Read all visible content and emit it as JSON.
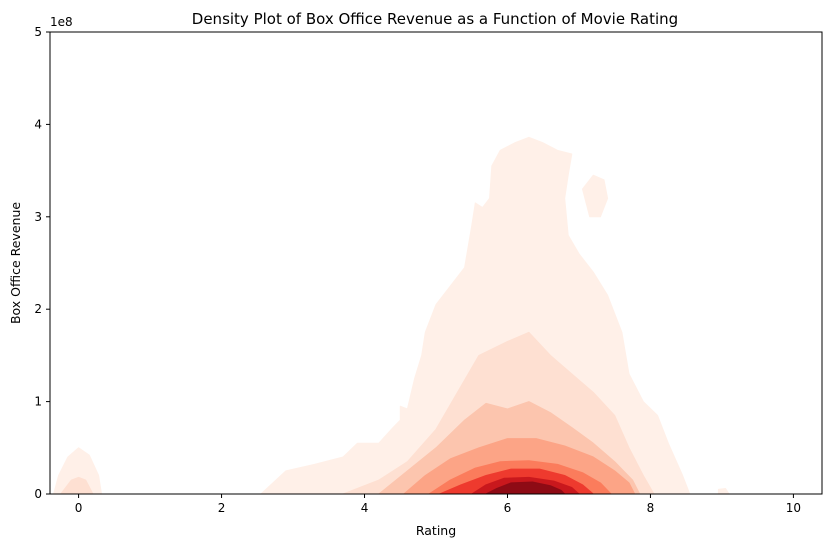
{
  "chart_data": {
    "type": "kde_contour",
    "title": "Density Plot of Box Office Revenue as a Function of Movie Rating",
    "xlabel": "Rating",
    "ylabel": "Box Office Revenue",
    "y_offset_label": "1e8",
    "xlim": [
      -0.4,
      10.4
    ],
    "ylim": [
      0,
      5
    ],
    "x_ticks": [
      0,
      2,
      4,
      6,
      8,
      10
    ],
    "x_tick_labels": [
      "0",
      "2",
      "4",
      "6",
      "8",
      "10"
    ],
    "y_ticks": [
      0,
      1,
      2,
      3,
      4,
      5
    ],
    "y_tick_labels": [
      "0",
      "1",
      "2",
      "3",
      "4",
      "5"
    ],
    "grid": false,
    "colormap": "Reds",
    "levels": [
      {
        "level": 1,
        "color": "#fff0e8",
        "regions": [
          [
            [
              -0.35,
              0
            ],
            [
              -0.28,
              0.2
            ],
            [
              -0.15,
              0.4
            ],
            [
              0,
              0.5
            ],
            [
              0.15,
              0.42
            ],
            [
              0.28,
              0.2
            ],
            [
              0.32,
              0
            ]
          ],
          [
            [
              2.55,
              0
            ],
            [
              2.9,
              0.25
            ],
            [
              3.3,
              0.32
            ],
            [
              3.7,
              0.4
            ],
            [
              3.9,
              0.55
            ],
            [
              4.2,
              0.55
            ],
            [
              4.4,
              0.72
            ],
            [
              4.5,
              0.8
            ],
            [
              4.5,
              0.95
            ],
            [
              4.6,
              0.92
            ],
            [
              4.7,
              1.25
            ],
            [
              4.8,
              1.5
            ],
            [
              4.85,
              1.75
            ],
            [
              5.0,
              2.05
            ],
            [
              5.2,
              2.25
            ],
            [
              5.4,
              2.45
            ],
            [
              5.5,
              2.9
            ],
            [
              5.55,
              3.15
            ],
            [
              5.65,
              3.1
            ],
            [
              5.75,
              3.2
            ],
            [
              5.78,
              3.55
            ],
            [
              5.9,
              3.72
            ],
            [
              6.1,
              3.8
            ],
            [
              6.3,
              3.86
            ],
            [
              6.5,
              3.8
            ],
            [
              6.7,
              3.72
            ],
            [
              6.9,
              3.68
            ],
            [
              6.85,
              3.45
            ],
            [
              6.8,
              3.2
            ],
            [
              6.85,
              2.8
            ],
            [
              7.0,
              2.6
            ],
            [
              7.2,
              2.4
            ],
            [
              7.4,
              2.15
            ],
            [
              7.6,
              1.75
            ],
            [
              7.7,
              1.3
            ],
            [
              7.9,
              1.0
            ],
            [
              8.1,
              0.85
            ],
            [
              8.25,
              0.55
            ],
            [
              8.45,
              0.2
            ],
            [
              8.55,
              0
            ]
          ],
          [
            [
              7.05,
              3.3
            ],
            [
              7.2,
              3.45
            ],
            [
              7.35,
              3.4
            ],
            [
              7.4,
              3.2
            ],
            [
              7.3,
              3.0
            ],
            [
              7.15,
              3.0
            ]
          ],
          [
            [
              8.95,
              0
            ],
            [
              8.95,
              0.05
            ],
            [
              9.05,
              0.06
            ],
            [
              9.1,
              0
            ]
          ]
        ]
      },
      {
        "level": 2,
        "color": "#fee0d2",
        "regions": [
          [
            [
              -0.25,
              0
            ],
            [
              -0.1,
              0.15
            ],
            [
              0,
              0.18
            ],
            [
              0.1,
              0.15
            ],
            [
              0.2,
              0
            ]
          ],
          [
            [
              3.7,
              0
            ],
            [
              4.2,
              0.15
            ],
            [
              4.6,
              0.35
            ],
            [
              5.0,
              0.7
            ],
            [
              5.3,
              1.1
            ],
            [
              5.6,
              1.5
            ],
            [
              6.0,
              1.65
            ],
            [
              6.3,
              1.75
            ],
            [
              6.6,
              1.5
            ],
            [
              6.9,
              1.3
            ],
            [
              7.2,
              1.1
            ],
            [
              7.5,
              0.85
            ],
            [
              7.7,
              0.5
            ],
            [
              7.9,
              0.2
            ],
            [
              8.05,
              0
            ]
          ]
        ]
      },
      {
        "level": 3,
        "color": "#fcc5ae",
        "regions": [
          [
            [
              4.2,
              0
            ],
            [
              4.6,
              0.25
            ],
            [
              5.0,
              0.5
            ],
            [
              5.4,
              0.8
            ],
            [
              5.7,
              0.98
            ],
            [
              6.0,
              0.92
            ],
            [
              6.3,
              1.0
            ],
            [
              6.6,
              0.88
            ],
            [
              6.9,
              0.72
            ],
            [
              7.2,
              0.55
            ],
            [
              7.5,
              0.35
            ],
            [
              7.75,
              0.15
            ],
            [
              7.85,
              0
            ]
          ]
        ]
      },
      {
        "level": 4,
        "color": "#fca486",
        "regions": [
          [
            [
              4.55,
              0
            ],
            [
              4.85,
              0.2
            ],
            [
              5.2,
              0.38
            ],
            [
              5.6,
              0.5
            ],
            [
              6.0,
              0.6
            ],
            [
              6.4,
              0.6
            ],
            [
              6.8,
              0.52
            ],
            [
              7.2,
              0.4
            ],
            [
              7.5,
              0.25
            ],
            [
              7.7,
              0.12
            ],
            [
              7.78,
              0
            ]
          ]
        ]
      },
      {
        "level": 5,
        "color": "#fb7c5c",
        "regions": [
          [
            [
              4.9,
              0
            ],
            [
              5.2,
              0.15
            ],
            [
              5.55,
              0.28
            ],
            [
              5.9,
              0.35
            ],
            [
              6.3,
              0.36
            ],
            [
              6.7,
              0.32
            ],
            [
              7.05,
              0.23
            ],
            [
              7.3,
              0.12
            ],
            [
              7.45,
              0
            ]
          ]
        ]
      },
      {
        "level": 6,
        "color": "#ee3a2e",
        "regions": [
          [
            [
              5.05,
              0
            ],
            [
              5.35,
              0.1
            ],
            [
              5.7,
              0.2
            ],
            [
              6.05,
              0.27
            ],
            [
              6.45,
              0.27
            ],
            [
              6.8,
              0.2
            ],
            [
              7.05,
              0.1
            ],
            [
              7.2,
              0
            ]
          ]
        ]
      },
      {
        "level": 7,
        "color": "#c9181d",
        "regions": [
          [
            [
              5.5,
              0
            ],
            [
              5.7,
              0.1
            ],
            [
              5.95,
              0.17
            ],
            [
              6.3,
              0.18
            ],
            [
              6.65,
              0.14
            ],
            [
              6.9,
              0.07
            ],
            [
              7.0,
              0
            ]
          ]
        ]
      },
      {
        "level": 8,
        "color": "#8e0b15",
        "regions": [
          [
            [
              5.7,
              0
            ],
            [
              5.85,
              0.06
            ],
            [
              6.05,
              0.12
            ],
            [
              6.35,
              0.13
            ],
            [
              6.6,
              0.09
            ],
            [
              6.75,
              0.04
            ],
            [
              6.8,
              0
            ]
          ]
        ]
      }
    ]
  }
}
